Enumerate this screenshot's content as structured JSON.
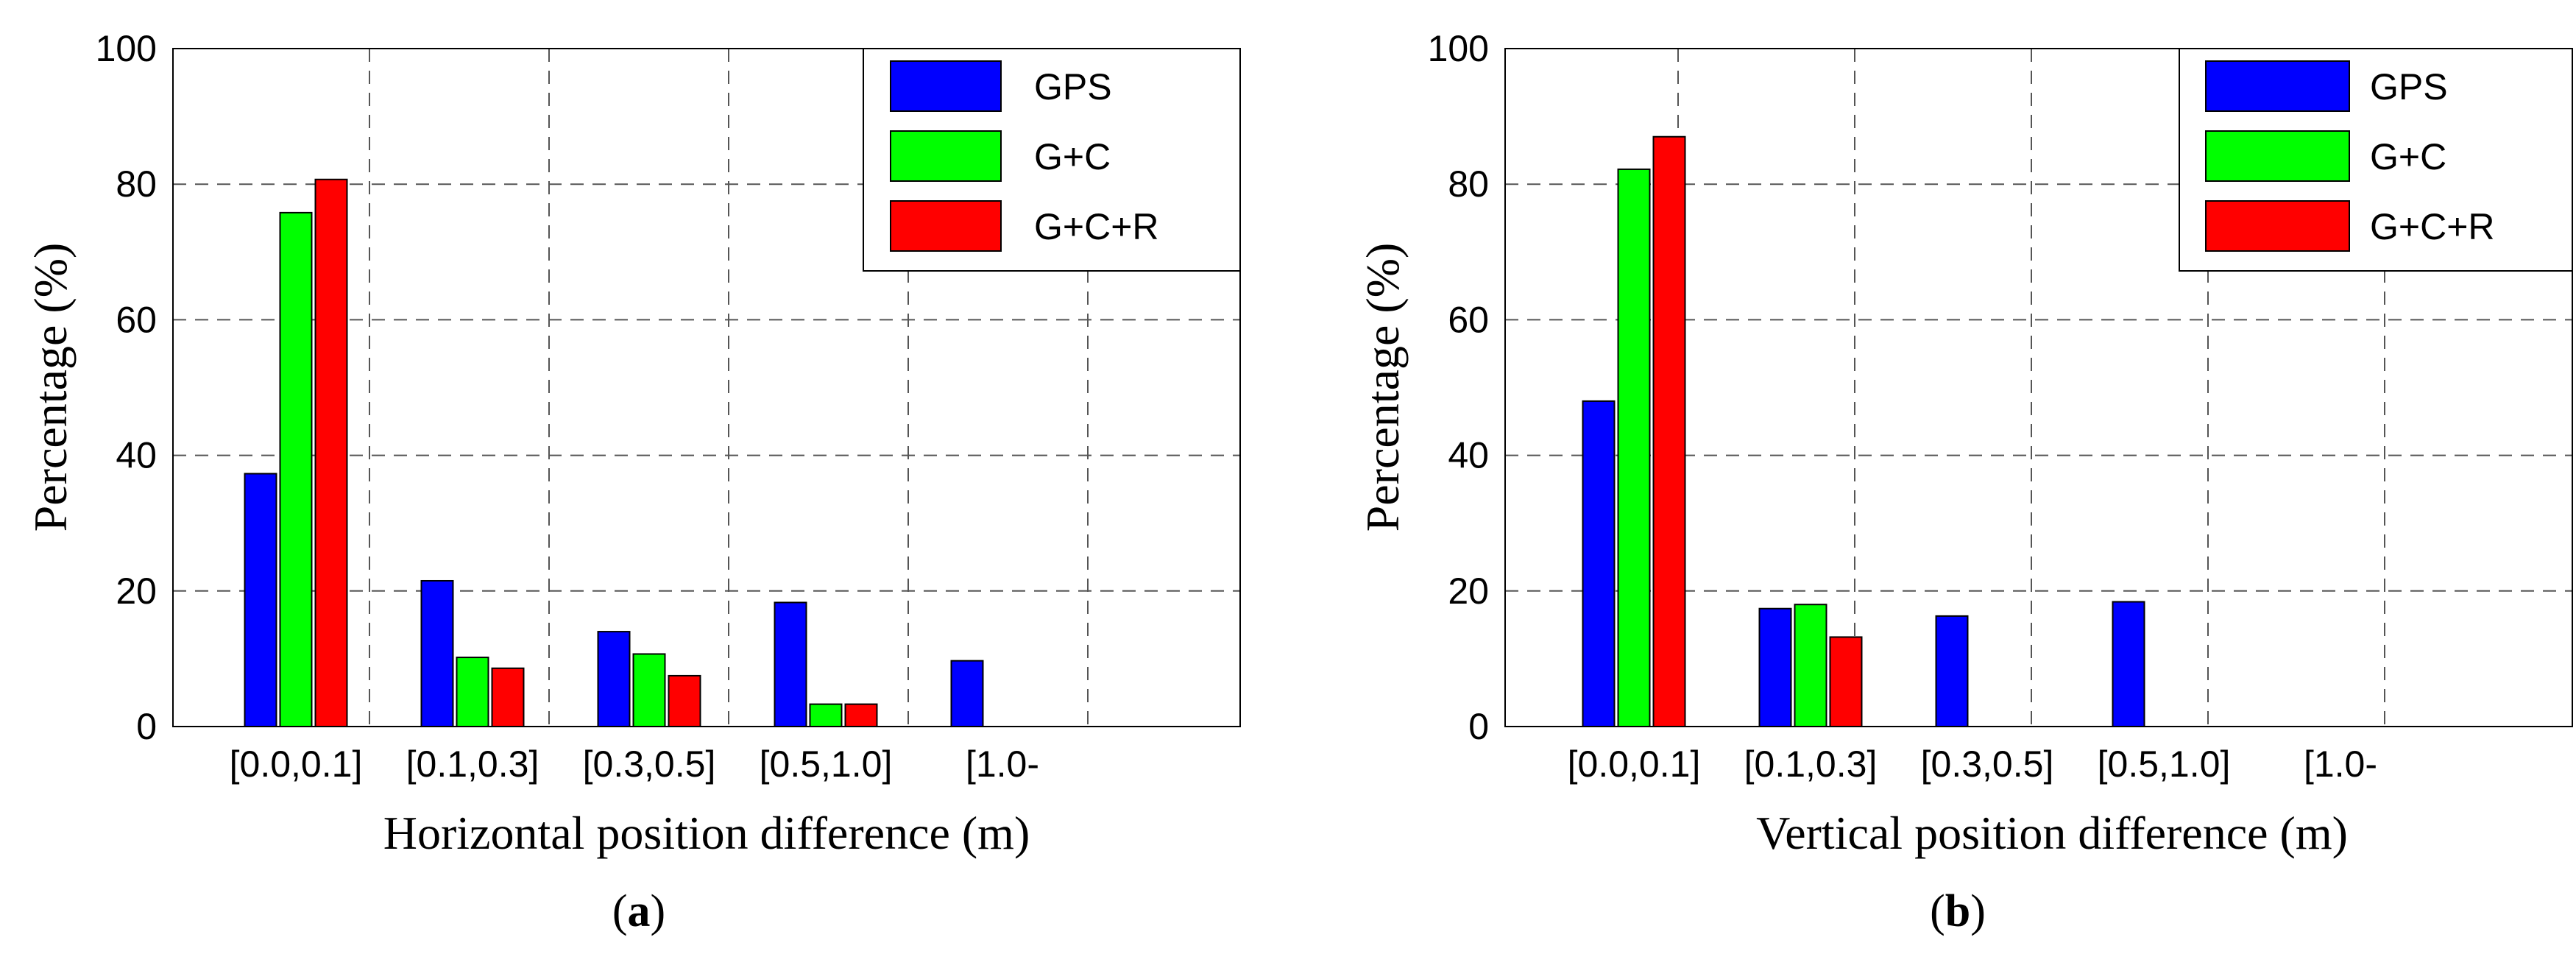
{
  "chart_data": [
    {
      "type": "bar",
      "panel_label": "a",
      "xlabel": "Horizontal position difference (m)",
      "ylabel": "Percentage (%)",
      "ylim": [
        0,
        100
      ],
      "yticks": [
        "0",
        "20",
        "40",
        "60",
        "80",
        "100"
      ],
      "categories": [
        "[0.0,0.1]",
        "[0.1,0.3]",
        "[0.3,0.5]",
        "[0.5,1.0]",
        "[1.0-"
      ],
      "grid": true,
      "legend_position": "top-right",
      "series": [
        {
          "name": "GPS",
          "color": "#0000ff",
          "values": [
            37.3,
            21.5,
            14.0,
            18.3,
            9.7
          ]
        },
        {
          "name": "G+C",
          "color": "#00ff00",
          "values": [
            75.8,
            10.2,
            10.7,
            3.3,
            0
          ]
        },
        {
          "name": "G+C+R",
          "color": "#ff0000",
          "values": [
            80.7,
            8.6,
            7.5,
            3.3,
            0
          ]
        }
      ]
    },
    {
      "type": "bar",
      "panel_label": "b",
      "xlabel": "Vertical position difference (m)",
      "ylabel": "Percentage (%)",
      "ylim": [
        0,
        100
      ],
      "yticks": [
        "0",
        "20",
        "40",
        "60",
        "80",
        "100"
      ],
      "categories": [
        "[0.0,0.1]",
        "[0.1,0.3]",
        "[0.3,0.5]",
        "[0.5,1.0]",
        "[1.0-"
      ],
      "grid": true,
      "legend_position": "top-right",
      "series": [
        {
          "name": "GPS",
          "color": "#0000ff",
          "values": [
            48.0,
            17.4,
            16.3,
            18.4,
            0
          ]
        },
        {
          "name": "G+C",
          "color": "#00ff00",
          "values": [
            82.2,
            18.0,
            0,
            0,
            0
          ]
        },
        {
          "name": "G+C+R",
          "color": "#ff0000",
          "values": [
            87.0,
            13.2,
            0,
            0,
            0
          ]
        }
      ]
    }
  ]
}
